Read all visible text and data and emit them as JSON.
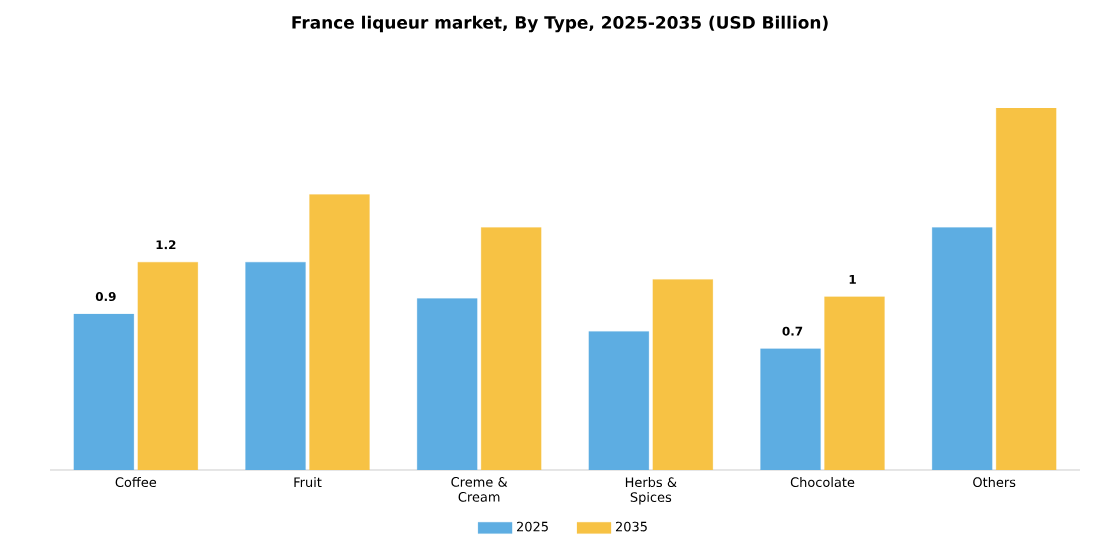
{
  "chart_data": {
    "type": "bar",
    "title": "France liqueur market, By Type, 2025-2035 (USD Billion)",
    "categories": [
      "Coffee",
      "Fruit",
      "Creme & Cream",
      "Herbs & Spices",
      "Chocolate",
      "Others"
    ],
    "series": [
      {
        "name": "2025",
        "color": "#5dade2",
        "values": [
          0.9,
          1.2,
          0.99,
          0.8,
          0.7,
          1.4
        ],
        "value_labels": [
          "0.9",
          null,
          null,
          null,
          "0.7",
          null
        ]
      },
      {
        "name": "2035",
        "color": "#f7c244",
        "values": [
          1.2,
          1.59,
          1.4,
          1.1,
          1.0,
          2.09
        ],
        "value_labels": [
          "1.2",
          null,
          null,
          null,
          "1",
          null
        ]
      }
    ],
    "legend": "bottom",
    "tick_labels": "x"
  }
}
